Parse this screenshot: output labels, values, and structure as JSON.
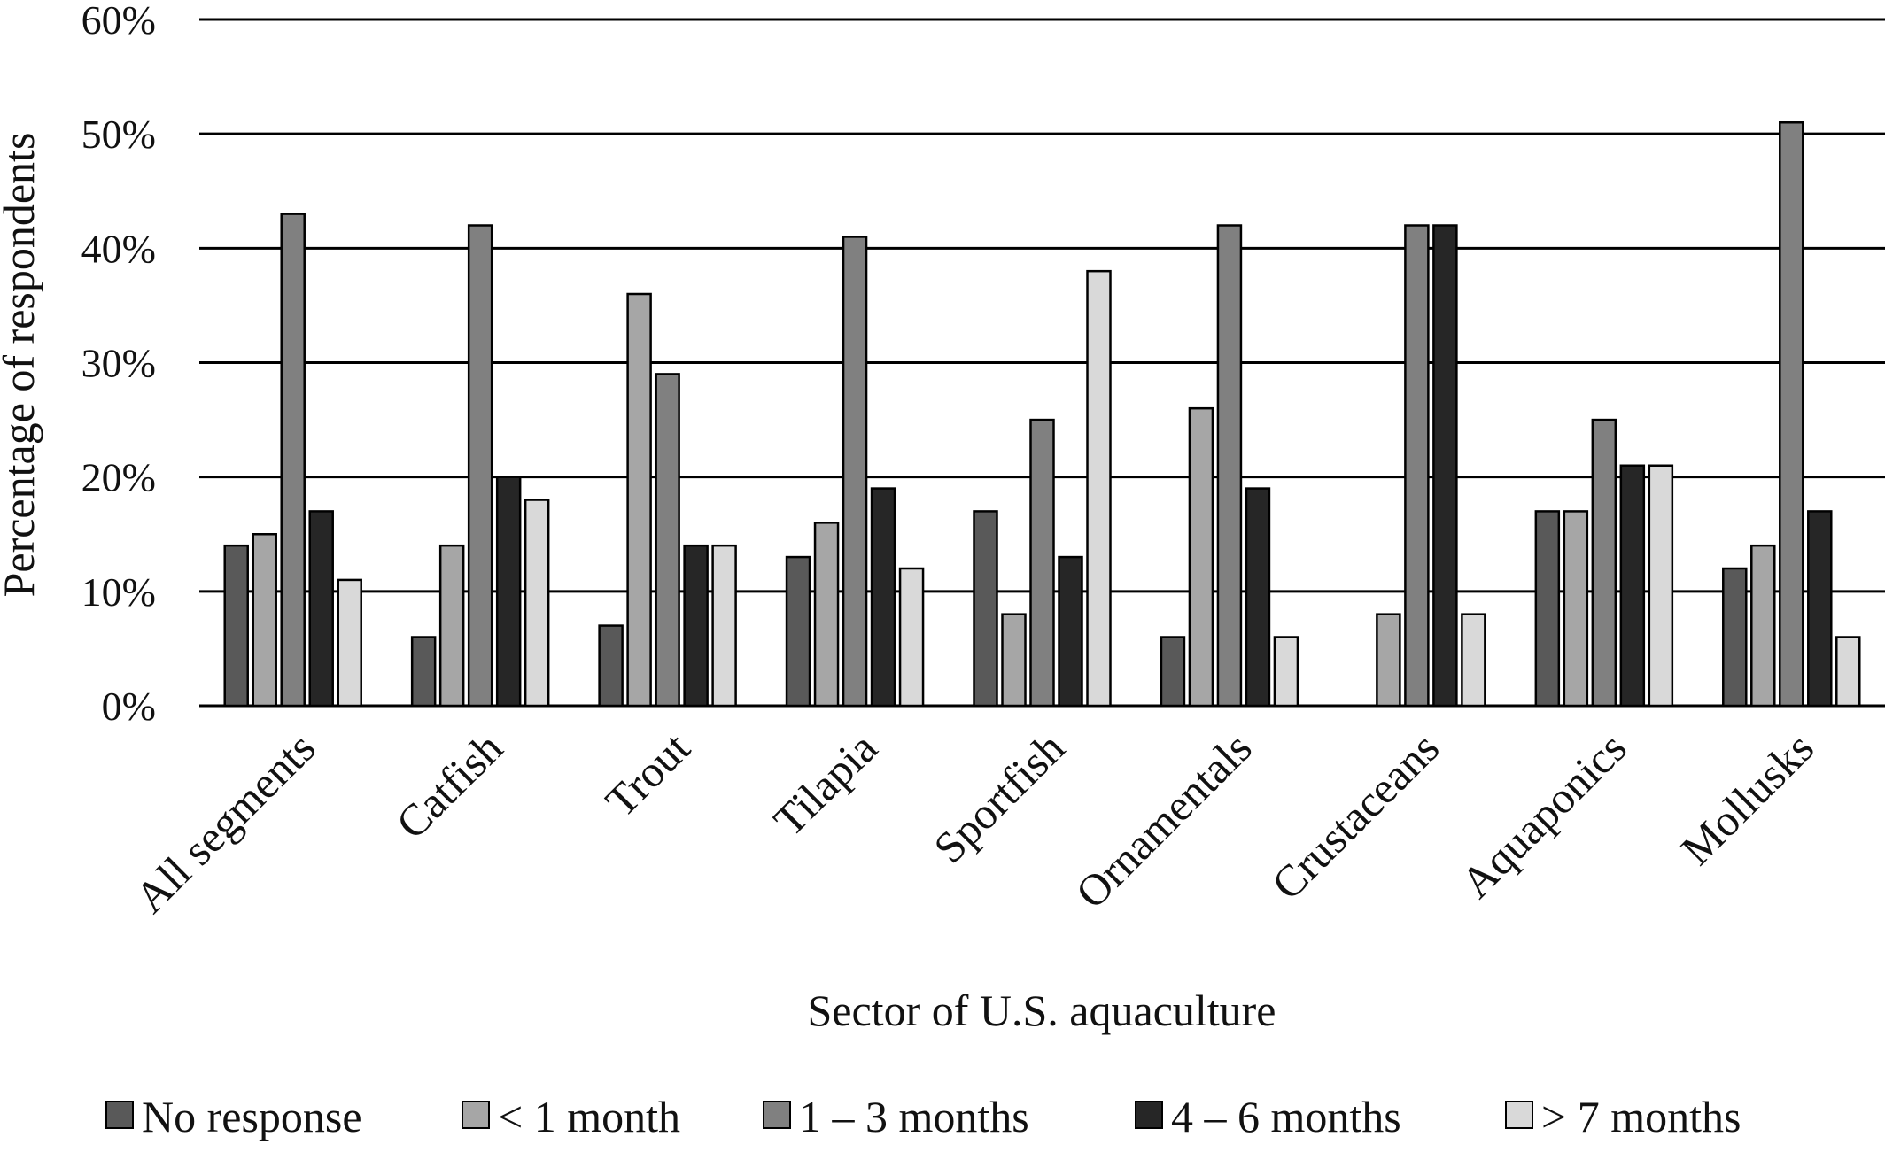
{
  "chart_data": {
    "type": "bar",
    "title": "",
    "xlabel": "Sector of U.S. aquaculture",
    "ylabel": "Percentage of respondents",
    "ylim": [
      0,
      60
    ],
    "yticks": [
      "0%",
      "10%",
      "20%",
      "30%",
      "40%",
      "50%",
      "60%"
    ],
    "grid": true,
    "legend_position": "bottom",
    "categories": [
      "All segments",
      "Catfish",
      "Trout",
      "Tilapia",
      "Sportfish",
      "Ornamentals",
      "Crustaceans",
      "Aquaponics",
      "Mollusks"
    ],
    "series": [
      {
        "name": "No response",
        "color": "#595959",
        "values": [
          14,
          6,
          7,
          13,
          17,
          6,
          0,
          17,
          12
        ]
      },
      {
        "name": "< 1 month",
        "color": "#a6a6a6",
        "values": [
          15,
          14,
          36,
          16,
          8,
          26,
          8,
          17,
          14
        ]
      },
      {
        "name": "1 – 3 months",
        "color": "#808080",
        "values": [
          43,
          42,
          29,
          41,
          25,
          42,
          42,
          25,
          51
        ]
      },
      {
        "name": "4 – 6 months",
        "color": "#262626",
        "values": [
          17,
          20,
          14,
          19,
          13,
          19,
          42,
          21,
          17
        ]
      },
      {
        "name": "> 7 months",
        "color": "#d9d9d9",
        "values": [
          11,
          18,
          14,
          12,
          38,
          6,
          8,
          21,
          6
        ]
      }
    ]
  }
}
